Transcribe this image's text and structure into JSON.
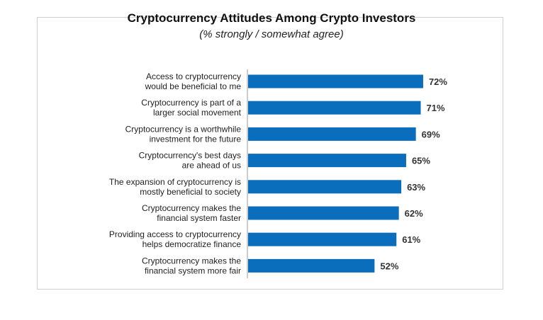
{
  "chart_data": {
    "type": "bar",
    "orientation": "horizontal",
    "title": "Cryptocurrency Attitudes Among Crypto Investors",
    "subtitle": "(% strongly / somewhat agree)",
    "categories": [
      [
        "Access to cryptocurrency",
        "would be beneficial to me"
      ],
      [
        "Cryptocurrency is part of a",
        "larger social movement"
      ],
      [
        "Cryptocurrency is a worthwhile",
        "investment for the future"
      ],
      [
        "Cryptocurrency's best days",
        "are ahead of us"
      ],
      [
        "The expansion of cryptocurrency is",
        "mostly beneficial to society"
      ],
      [
        "Cryptocurrency makes the",
        "financial system faster"
      ],
      [
        "Providing access to cryptocurrency",
        "helps democratize finance"
      ],
      [
        "Cryptocurrency makes the",
        "financial system more fair"
      ]
    ],
    "values": [
      72,
      71,
      69,
      65,
      63,
      62,
      61,
      52
    ],
    "data_labels": [
      "72%",
      "71%",
      "69%",
      "65%",
      "63%",
      "62%",
      "61%",
      "52%"
    ],
    "bar_color": "#0a6ebd",
    "xlim": [
      0,
      100
    ],
    "grid": false,
    "legend": "none"
  }
}
